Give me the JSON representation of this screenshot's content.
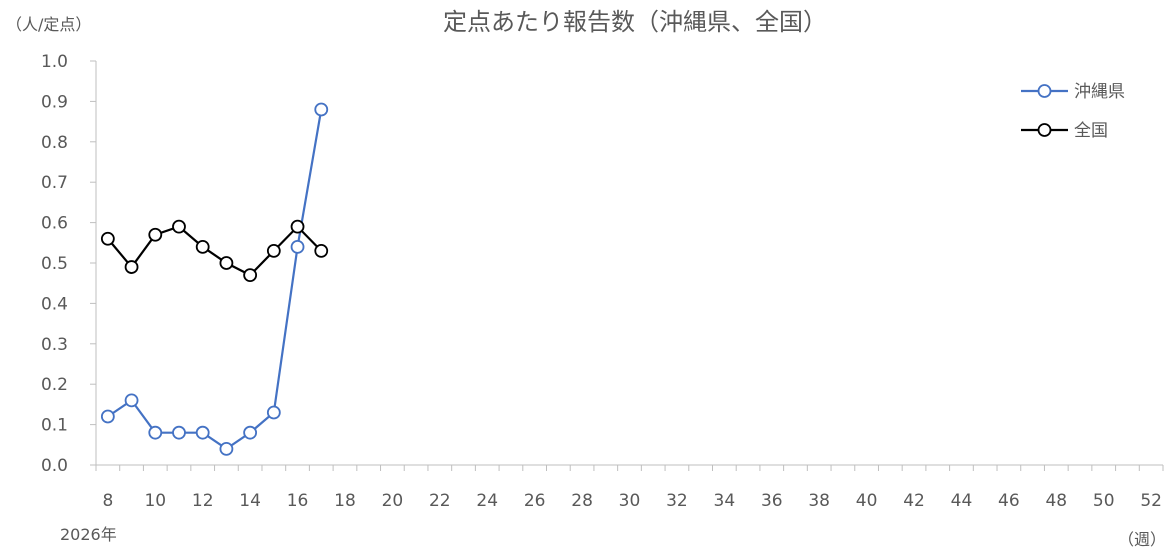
{
  "chart_data": {
    "type": "line",
    "title": "定点あたり報告数（沖縄県、全国）",
    "y_unit_label": "（人/定点）",
    "x_unit_label": "（週）",
    "x_note": "2026年",
    "ylim": [
      0.0,
      1.0
    ],
    "xlim": [
      7.5,
      52.5
    ],
    "y_ticks": [
      "0.0",
      "0.1",
      "0.2",
      "0.3",
      "0.4",
      "0.5",
      "0.6",
      "0.7",
      "0.8",
      "0.9",
      "1.0"
    ],
    "x_ticks": [
      "8",
      "10",
      "12",
      "14",
      "16",
      "18",
      "20",
      "22",
      "24",
      "26",
      "28",
      "30",
      "32",
      "34",
      "36",
      "38",
      "40",
      "42",
      "44",
      "46",
      "48",
      "50",
      "52"
    ],
    "grid": false,
    "legend_position": "top-right",
    "series": [
      {
        "name": "沖縄県",
        "color": "#4472C4",
        "x": [
          8,
          9,
          10,
          11,
          12,
          13,
          14,
          15,
          16,
          17
        ],
        "values": [
          0.12,
          0.16,
          0.08,
          0.08,
          0.08,
          0.04,
          0.08,
          0.13,
          0.54,
          0.88
        ]
      },
      {
        "name": "全国",
        "color": "#000000",
        "x": [
          8,
          9,
          10,
          11,
          12,
          13,
          14,
          15,
          16,
          17
        ],
        "values": [
          0.56,
          0.49,
          0.57,
          0.59,
          0.54,
          0.5,
          0.47,
          0.53,
          0.59,
          0.53
        ]
      }
    ]
  }
}
